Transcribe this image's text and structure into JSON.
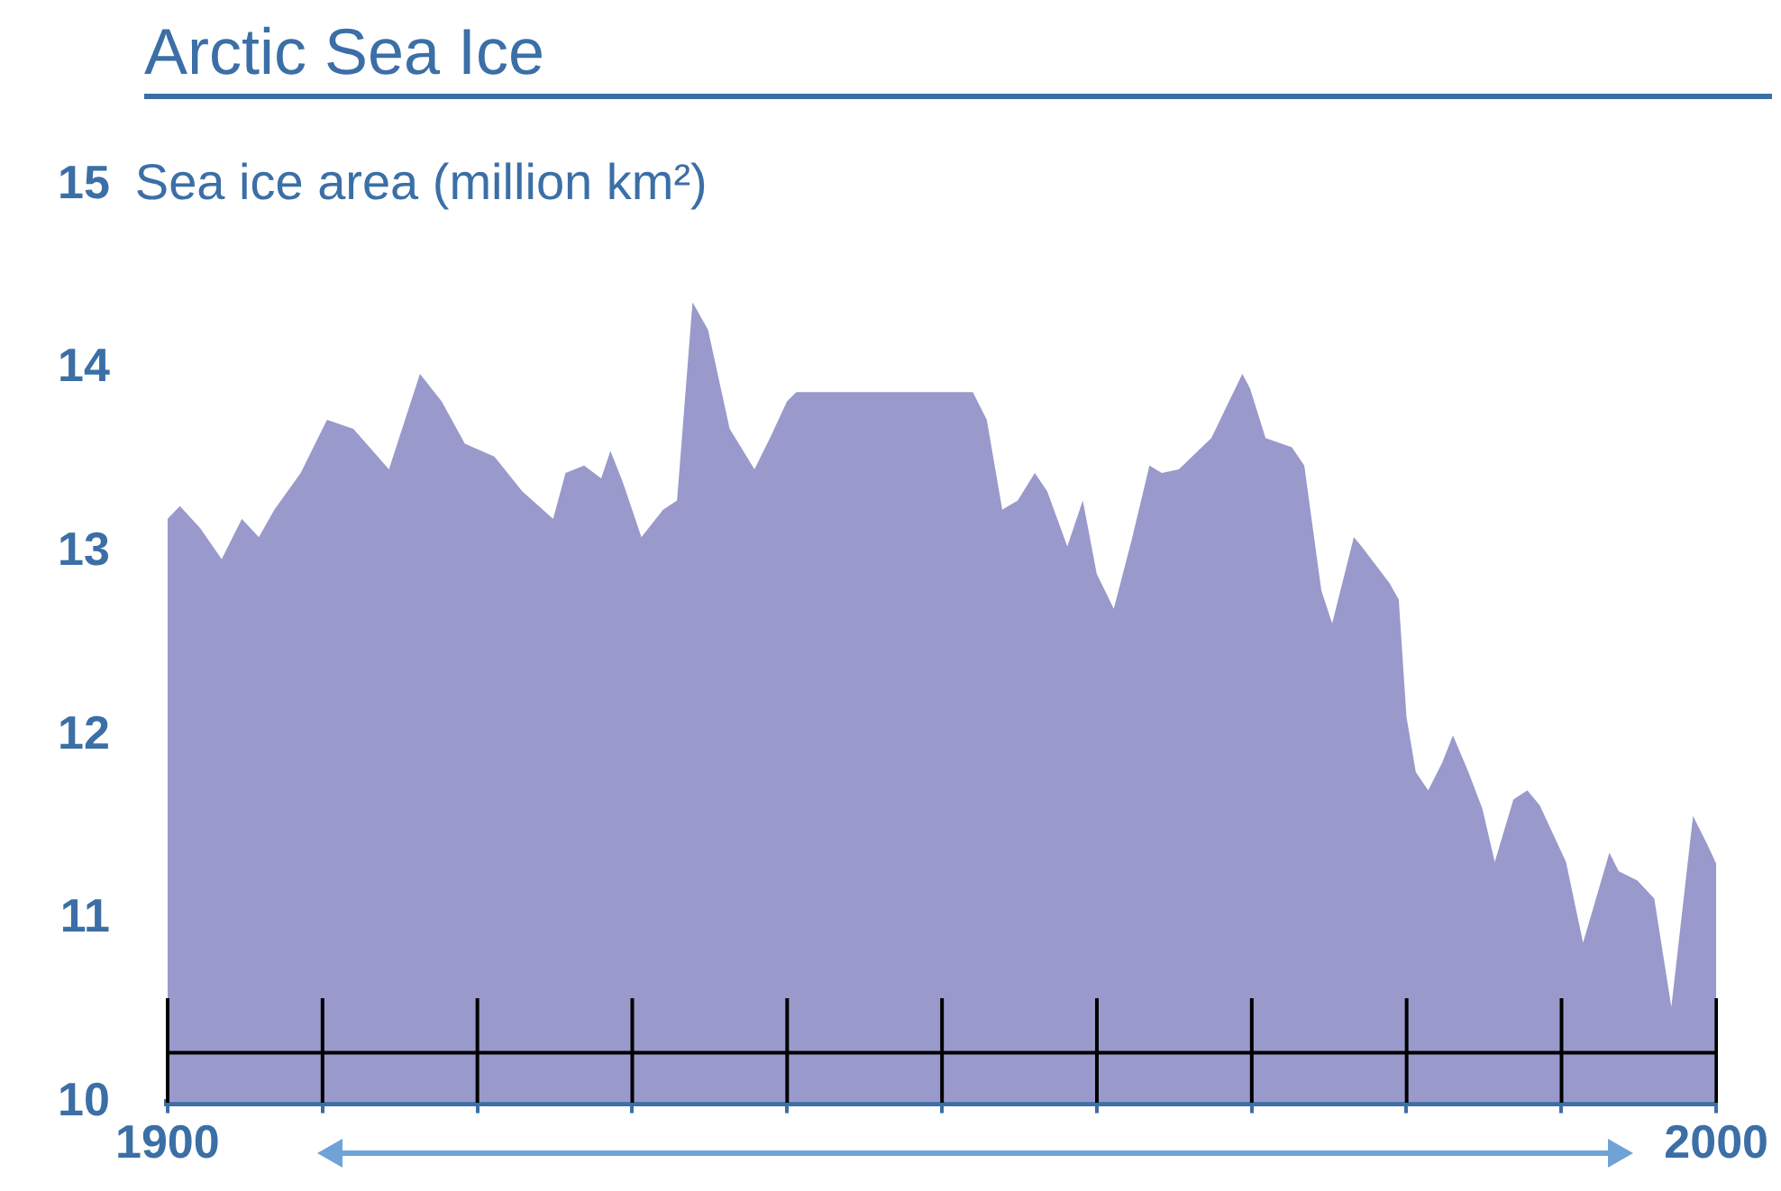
{
  "chart_data": {
    "type": "area",
    "title": "Arctic Sea Ice",
    "ylabel": "Sea ice area (million km²)",
    "xlim": [
      1900,
      2000
    ],
    "ylim": [
      10,
      15
    ],
    "yticks": [
      10,
      11,
      12,
      13,
      14,
      15
    ],
    "xticks": [
      {
        "value": 1900,
        "label": "1900"
      },
      {
        "value": 1910,
        "label": null
      },
      {
        "value": 1920,
        "label": null
      },
      {
        "value": 1930,
        "label": null
      },
      {
        "value": 1940,
        "label": null
      },
      {
        "value": 1950,
        "label": null
      },
      {
        "value": 1960,
        "label": null
      },
      {
        "value": 1970,
        "label": null
      },
      {
        "value": 1980,
        "label": null
      },
      {
        "value": 1990,
        "label": null
      },
      {
        "value": 2000,
        "label": "2000"
      }
    ],
    "ref_lines": [
      {
        "axis": "y",
        "value": 10.27,
        "color": "#000000"
      }
    ],
    "series": [
      {
        "color": "#9999cc",
        "x": [
          1900,
          1900.8,
          1902.1,
          1903.5,
          1904.8,
          1905.9,
          1906.9,
          1908.6,
          1910.3,
          1912,
          1914.3,
          1916.3,
          1917.7,
          1919.2,
          1921.1,
          1922.9,
          1924.9,
          1925.7,
          1926.9,
          1928,
          1928.6,
          1929.4,
          1930.6,
          1932,
          1932.9,
          1933.9,
          1934.9,
          1936.3,
          1937.9,
          1938.9,
          1940,
          1940.6,
          1952,
          1952.9,
          1953.9,
          1954.9,
          1956,
          1956.8,
          1958.1,
          1959.1,
          1960,
          1961.1,
          1962.3,
          1963.4,
          1964.2,
          1965.3,
          1967.4,
          1969.4,
          1969.9,
          1970.9,
          1972.6,
          1973.4,
          1974.5,
          1975.2,
          1976.6,
          1977.1,
          1978.9,
          1979.5,
          1980,
          1980.6,
          1981.4,
          1982.3,
          1983,
          1984,
          1984.9,
          1985.7,
          1986.9,
          1987.8,
          1988.6,
          1990.3,
          1991.4,
          1993.1,
          1993.7,
          1994.9,
          1996,
          1997.1,
          1998.5,
          1999.4,
          2000
        ],
        "values": [
          13.18,
          13.25,
          13.13,
          12.96,
          13.18,
          13.08,
          13.23,
          13.43,
          13.72,
          13.67,
          13.45,
          13.97,
          13.82,
          13.59,
          13.52,
          13.33,
          13.18,
          13.43,
          13.47,
          13.4,
          13.55,
          13.38,
          13.08,
          13.23,
          13.28,
          14.36,
          14.21,
          13.67,
          13.45,
          13.62,
          13.82,
          13.87,
          13.87,
          13.72,
          13.23,
          13.28,
          13.43,
          13.33,
          13.03,
          13.28,
          12.88,
          12.69,
          13.08,
          13.47,
          13.43,
          13.45,
          13.62,
          13.97,
          13.89,
          13.62,
          13.57,
          13.47,
          12.79,
          12.61,
          13.08,
          13.03,
          12.83,
          12.74,
          12.1,
          11.8,
          11.7,
          11.85,
          12.0,
          11.8,
          11.6,
          11.31,
          11.65,
          11.7,
          11.62,
          11.31,
          10.87,
          11.36,
          11.26,
          11.21,
          11.11,
          10.52,
          11.56,
          11.41,
          11.3
        ]
      }
    ]
  }
}
